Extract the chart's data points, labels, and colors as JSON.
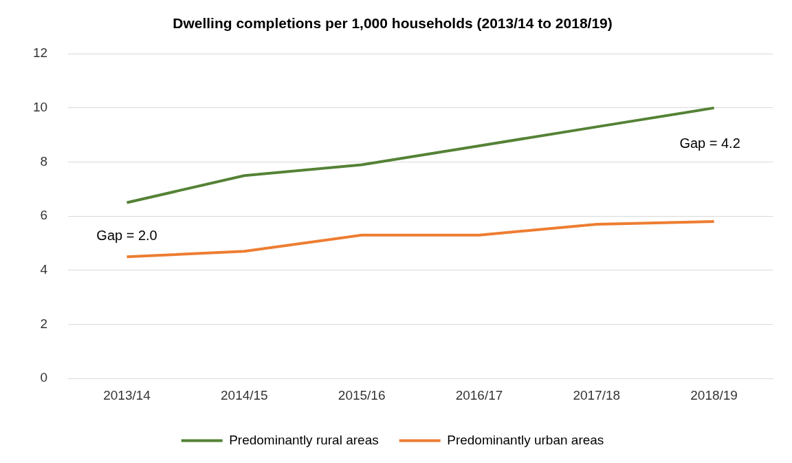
{
  "chart_data": {
    "type": "line",
    "title": "Dwelling completions per 1,000 households (2013/14 to 2018/19)",
    "categories": [
      "2013/14",
      "2014/15",
      "2015/16",
      "2016/17",
      "2017/18",
      "2018/19"
    ],
    "series": [
      {
        "name": "Predominantly rural areas",
        "color": "#548235",
        "values": [
          6.5,
          7.5,
          7.9,
          8.6,
          9.3,
          10.0
        ]
      },
      {
        "name": "Predominantly urban areas",
        "color": "#ed7d31",
        "values": [
          4.5,
          4.7,
          5.3,
          5.3,
          5.7,
          5.8
        ]
      }
    ],
    "ylim": [
      0,
      12
    ],
    "yticks": [
      0,
      2,
      4,
      6,
      8,
      10,
      12
    ],
    "grid": "y",
    "legend": "bottom",
    "marker": "none",
    "line_style": "solid",
    "annotations": [
      "Gap = 2.0",
      "Gap = 4.2"
    ]
  }
}
